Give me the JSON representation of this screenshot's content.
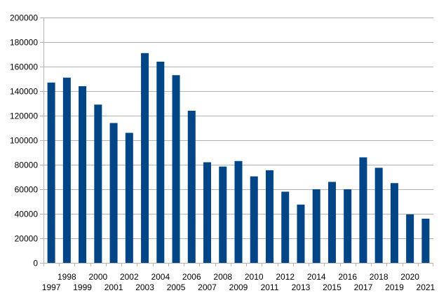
{
  "chart_data": {
    "type": "bar",
    "categories": [
      "1997",
      "1998",
      "1999",
      "2000",
      "2001",
      "2002",
      "2003",
      "2004",
      "2005",
      "2006",
      "2007",
      "2008",
      "2009",
      "2010",
      "2011",
      "2012",
      "2013",
      "2014",
      "2015",
      "2016",
      "2017",
      "2018",
      "2019",
      "2020",
      "2021"
    ],
    "series": [
      {
        "values": [
          147000,
          151000,
          144000,
          129000,
          114000,
          106000,
          171000,
          164000,
          153000,
          124000,
          82000,
          78500,
          83000,
          70500,
          75500,
          58000,
          47500,
          60000,
          66000,
          60000,
          86000,
          77500,
          65000,
          39500,
          36000
        ]
      }
    ],
    "ylim": [
      0,
      200000
    ],
    "yticks": [
      0,
      20000,
      40000,
      60000,
      80000,
      100000,
      120000,
      140000,
      160000,
      180000,
      200000
    ],
    "tick_labels": {
      "y": [
        "0",
        "20000",
        "40000",
        "60000",
        "80000",
        "100000",
        "120000",
        "140000",
        "160000",
        "180000",
        "200000"
      ]
    },
    "title": "",
    "xlabel": "",
    "ylabel": "",
    "grid": true,
    "legend": "none",
    "colors": {
      "bar": "#004586",
      "grid": "#b3b3b3",
      "axis": "#b3b3b3",
      "text": "#000000"
    }
  }
}
